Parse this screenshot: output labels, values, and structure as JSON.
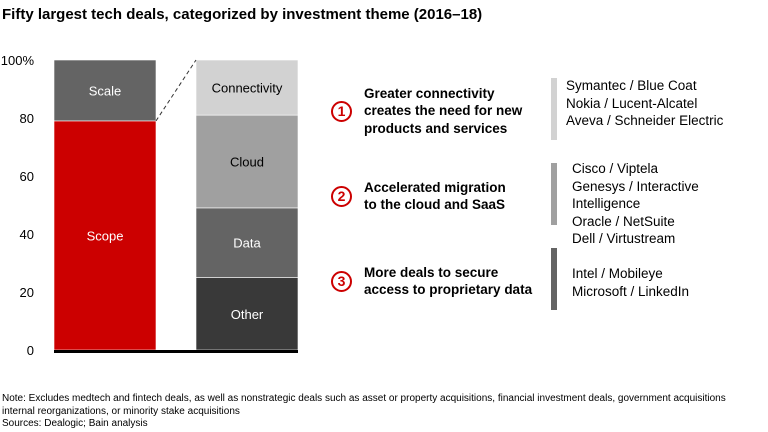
{
  "title": "Fifty largest  tech deals, categorized by investment theme (2016–18)",
  "chart_data": {
    "type": "bar",
    "stacked": true,
    "title": "Fifty largest  tech deals, categorized by investment theme (2016–18)",
    "ylim": [
      0,
      100
    ],
    "yticks": [
      "0",
      "20",
      "40",
      "60",
      "80",
      "100%"
    ],
    "grid": false,
    "bars": [
      {
        "segments": [
          {
            "name": "Scope",
            "value": 79,
            "color": "#cc0000",
            "text_color": "#ffffff"
          },
          {
            "name": "Scale",
            "value": 21,
            "color": "#646464",
            "text_color": "#ffffff"
          }
        ]
      },
      {
        "segments": [
          {
            "name": "Other",
            "value": 25,
            "color": "#393939",
            "text_color": "#ffffff"
          },
          {
            "name": "Data",
            "value": 24,
            "color": "#646464",
            "text_color": "#ffffff"
          },
          {
            "name": "Cloud",
            "value": 32,
            "color": "#a0a0a0",
            "text_color": "#000000"
          },
          {
            "name": "Connectivity",
            "value": 19,
            "color": "#d2d2d2",
            "text_color": "#000000"
          }
        ]
      }
    ]
  },
  "themes": [
    {
      "number": "1",
      "text": [
        "Greater connectivity",
        "creates the need for new",
        "products and services"
      ],
      "bar_color": "#d2d2d2",
      "deals": [
        "Symantec / Blue Coat",
        "Nokia / Lucent-Alcatel",
        "Aveva / Schneider Electric"
      ]
    },
    {
      "number": "2",
      "text": [
        "Accelerated migration",
        "to the cloud and SaaS"
      ],
      "bar_color": "#a0a0a0",
      "deals": [
        "Cisco / Viptela",
        "Genesys / Interactive Intelligence",
        "Oracle / NetSuite",
        "Dell / Virtustream"
      ]
    },
    {
      "number": "3",
      "text": [
        "More deals to secure",
        "access to proprietary data"
      ],
      "bar_color": "#646464",
      "deals": [
        "Intel / Mobileye",
        "Microsoft / LinkedIn"
      ]
    }
  ],
  "notes": [
    "Note: Excludes medtech and fintech deals, as well as nonstrategic deals such as asset or property acquisitions, financial investment deals, government acquisitions",
    "internal reorganizations, or minority stake acquisitions",
    "Sources: Dealogic; Bain analysis"
  ]
}
